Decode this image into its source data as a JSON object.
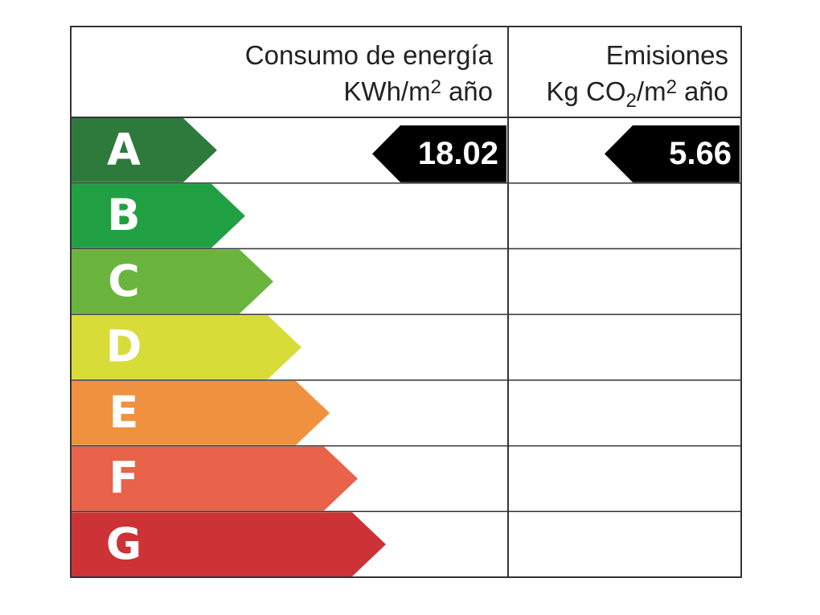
{
  "header": {
    "energy": {
      "title": "Consumo de energía",
      "unit": [
        "KWh/m",
        "2",
        "año"
      ]
    },
    "emissions": {
      "title": "Emisiones",
      "unit": [
        "Kg CO",
        "2",
        "/m",
        "2",
        "año"
      ]
    }
  },
  "classes": [
    {
      "letter": "A",
      "color": "#2e7a3c"
    },
    {
      "letter": "B",
      "color": "#21a043"
    },
    {
      "letter": "C",
      "color": "#6ab43e"
    },
    {
      "letter": "D",
      "color": "#d8dc38"
    },
    {
      "letter": "E",
      "color": "#f0913f"
    },
    {
      "letter": "F",
      "color": "#e9624a"
    },
    {
      "letter": "G",
      "color": "#cd3236"
    }
  ],
  "energy": {
    "value": 18.02,
    "class": "A"
  },
  "emissions": {
    "value": 5.66,
    "class": "A"
  }
}
